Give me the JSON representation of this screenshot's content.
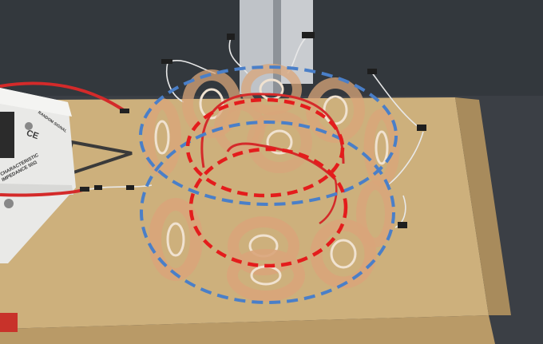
{
  "device": {
    "brand_mark": "CE",
    "model": "RANDOM SIGNAL",
    "label_line1": "CHARACTERISTIC",
    "label_line2": "IMPEDANCE 50Ω"
  },
  "colors": {
    "floor": "#3a3e44",
    "box": "#cdb07c",
    "box_dark": "#b99a67",
    "coil": "#d9a57a",
    "outer_ring": "#4a7fc8",
    "inner_ring": "#e41c1c",
    "red_wire": "#d42a2a",
    "device_body": "#e9e9e7"
  },
  "icons": [
    "warning-triangle-icon"
  ]
}
